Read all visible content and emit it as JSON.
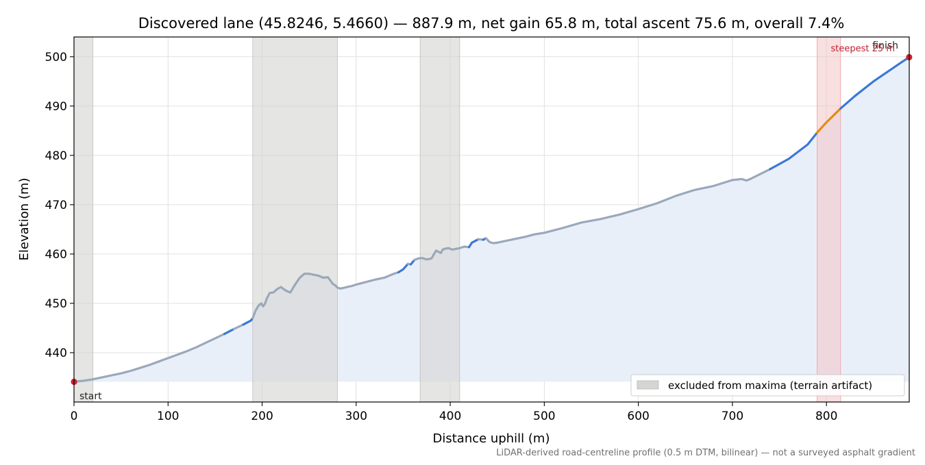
{
  "chart_data": {
    "type": "line",
    "title": "Discovered lane (45.8246, 5.4660) — 887.9 m, net gain 65.8 m, total ascent 75.6 m, overall 7.4%",
    "xlabel": "Distance uphill (m)",
    "ylabel": "Elevation (m)",
    "xlim": [
      0,
      888
    ],
    "ylim": [
      430,
      504
    ],
    "x_ticks": [
      0,
      100,
      200,
      300,
      400,
      500,
      600,
      700,
      800
    ],
    "y_ticks": [
      440,
      450,
      460,
      470,
      480,
      490,
      500
    ],
    "grid": true,
    "footnote": "LiDAR-derived road-centreline profile (0.5 m DTM, bilinear) — not a surveyed asphalt gradient",
    "legend": {
      "position": "lower-right",
      "entries": [
        "excluded from maxima (terrain artifact)"
      ]
    },
    "excluded_ranges": [
      [
        0,
        20
      ],
      [
        190,
        280
      ],
      [
        368,
        410
      ]
    ],
    "steepest": {
      "range": [
        790,
        815
      ],
      "label": "steepest 25 m"
    },
    "markers": [
      {
        "x": 0,
        "y": 434.1,
        "label": "start"
      },
      {
        "x": 887.9,
        "y": 499.9,
        "label": "finish"
      }
    ],
    "colors": {
      "profile_gray": "#9aa8bb",
      "profile_blue": "#3a78d6",
      "steepest_orange": "#e8890c",
      "fill": "#e9eff9",
      "excluded": "#d5d5d3",
      "steepest_band": "#f2c4c6",
      "marker": "#cc2233",
      "steepest_text": "#c0202f"
    },
    "series": [
      {
        "x": [
          0,
          10,
          20,
          30,
          40,
          50,
          60,
          70,
          80,
          90,
          100,
          110,
          120,
          130,
          140,
          150,
          160,
          170,
          180,
          185,
          188,
          190,
          193,
          196,
          199,
          201,
          203,
          205,
          208,
          212,
          216,
          220,
          225,
          230,
          235,
          240,
          245,
          250,
          255,
          260,
          265,
          270,
          275,
          278,
          280,
          283,
          286,
          290,
          295,
          300,
          310,
          320,
          330,
          340,
          345,
          350,
          355,
          358,
          362,
          366,
          370,
          375,
          380,
          385,
          390,
          392,
          395,
          398,
          402,
          405,
          410,
          415,
          420,
          423,
          426,
          430,
          435,
          438,
          442,
          446,
          450,
          460,
          470,
          480,
          490,
          500,
          520,
          540,
          560,
          580,
          600,
          620,
          640,
          660,
          680,
          700,
          710,
          715,
          720,
          740,
          760,
          780,
          790,
          800,
          815,
          830,
          850,
          870,
          880,
          887.9
        ],
        "y": [
          434.1,
          434.3,
          434.6,
          435.0,
          435.4,
          435.8,
          436.3,
          436.9,
          437.5,
          438.2,
          438.9,
          439.6,
          440.3,
          441.1,
          442.0,
          442.9,
          443.8,
          444.8,
          445.7,
          446.2,
          446.5,
          447.0,
          448.5,
          449.5,
          450.0,
          449.4,
          449.9,
          451.0,
          452.1,
          452.2,
          452.9,
          453.3,
          452.6,
          452.2,
          453.8,
          455.2,
          456.0,
          456.0,
          455.8,
          455.6,
          455.2,
          455.3,
          454.0,
          453.6,
          453.2,
          453.0,
          453.1,
          453.3,
          453.5,
          453.8,
          454.3,
          454.8,
          455.2,
          456.0,
          456.3,
          456.9,
          458.0,
          457.9,
          458.8,
          459.1,
          459.2,
          458.9,
          459.1,
          460.7,
          460.2,
          460.9,
          461.1,
          461.2,
          460.9,
          461.0,
          461.2,
          461.5,
          461.4,
          462.3,
          462.6,
          463.0,
          462.9,
          463.2,
          462.4,
          462.2,
          462.3,
          462.7,
          463.1,
          463.5,
          464.0,
          464.3,
          465.3,
          466.4,
          467.1,
          468.0,
          469.1,
          470.3,
          471.8,
          473.0,
          473.8,
          475.0,
          475.2,
          474.9,
          475.3,
          477.2,
          479.3,
          482.2,
          484.6,
          486.7,
          489.5,
          492.0,
          495.0,
          497.6,
          498.9,
          499.9
        ]
      }
    ]
  }
}
